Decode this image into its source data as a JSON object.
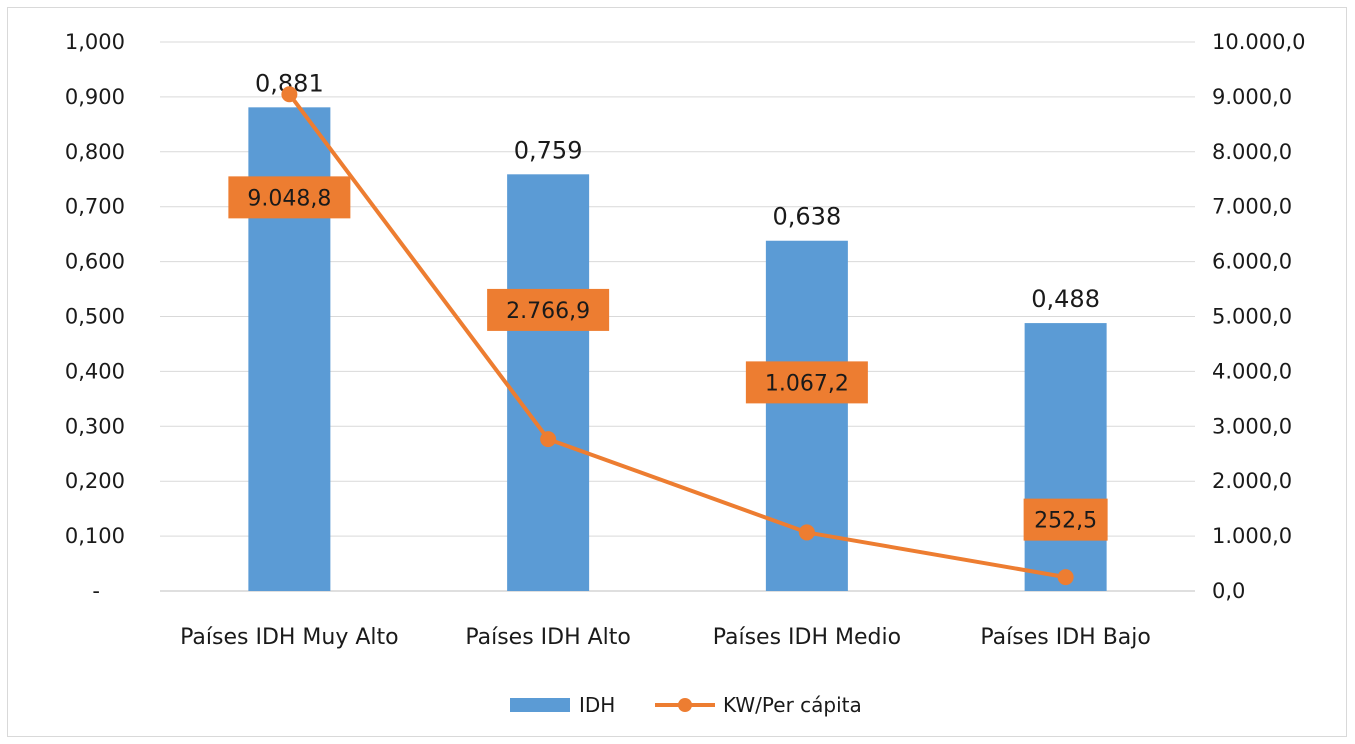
{
  "chart_data": {
    "type": "bar",
    "categories": [
      "Países IDH Muy Alto",
      "Países IDH  Alto",
      "Países IDH Medio",
      "Países IDH Bajo"
    ],
    "series": [
      {
        "name": "IDH",
        "type": "bar",
        "axis": "left",
        "values": [
          0.881,
          0.759,
          0.638,
          0.488
        ],
        "labels": [
          "0,881",
          "0,759",
          "0,638",
          "0,488"
        ],
        "color": "#5b9bd5"
      },
      {
        "name": "KW/Per cápita",
        "type": "line",
        "axis": "right",
        "values": [
          9048.8,
          2766.9,
          1067.2,
          252.5
        ],
        "labels": [
          "9.048,8",
          "2.766,9",
          "1.067,2",
          "252,5"
        ],
        "color": "#ed7d31"
      }
    ],
    "left_axis": {
      "ylim": [
        0,
        1.0
      ],
      "ticks": [
        0,
        0.1,
        0.2,
        0.3,
        0.4,
        0.5,
        0.6,
        0.7,
        0.8,
        0.9,
        1.0
      ],
      "tick_labels": [
        "-",
        "0,100",
        "0,200",
        "0,300",
        "0,400",
        "0,500",
        "0,600",
        "0,700",
        "0,800",
        "0,900",
        "1,000"
      ]
    },
    "right_axis": {
      "ylim": [
        0,
        10000
      ],
      "ticks": [
        0,
        1000,
        2000,
        3000,
        4000,
        5000,
        6000,
        7000,
        8000,
        9000,
        10000
      ],
      "tick_labels": [
        "0,0",
        "1.000,0",
        "2.000,0",
        "3.000,0",
        "4.000,0",
        "5.000,0",
        "6.000,0",
        "7.000,0",
        "8.000,0",
        "9.000,0",
        "10.000,0"
      ]
    },
    "grid": true,
    "legend": "bottom",
    "title": "",
    "xlabel": "",
    "ylabel": ""
  }
}
